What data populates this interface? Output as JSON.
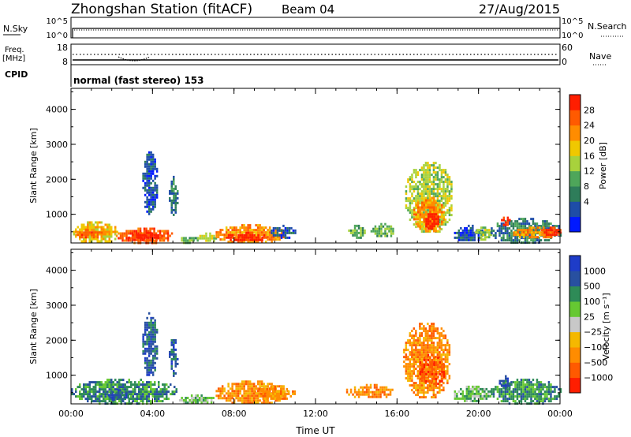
{
  "header": {
    "station": "Zhongshan Station (fitACF)",
    "beam": "Beam 04",
    "date": "27/Aug/2015"
  },
  "top_panels": {
    "nsky_label": "N.Sky",
    "nsearch_label": "N.Search",
    "freq_label_1": "Freq.",
    "freq_label_2": "[MHz]",
    "nave_label": "Nave",
    "cpid_label": "CPID",
    "cpid_text": "normal (fast stereo) 153",
    "noise_ticks_left": [
      "10^5",
      "10^0"
    ],
    "noise_ticks_right": [
      "10^5",
      "10^0"
    ],
    "freq_ticks_left": [
      "18",
      "8"
    ],
    "nave_ticks_right": [
      "60",
      "0"
    ]
  },
  "colors": {
    "power": [
      "#0019ff",
      "#1e4da8",
      "#2e7d5a",
      "#4ea65a",
      "#a8d23c",
      "#f0c800",
      "#ff8c00",
      "#ff5a00",
      "#ff1e00"
    ],
    "velocity": [
      "#ff1e00",
      "#ff5a00",
      "#ff8c00",
      "#f5b800",
      "#c8c8c8",
      "#66c832",
      "#2e8b57",
      "#2850a0",
      "#1e3cc8"
    ]
  },
  "chart_data": [
    {
      "type": "heatmap",
      "panel": "power",
      "xlabel": "",
      "ylabel": "Slant Range [km]",
      "colorbar_label": "Power [dB]",
      "colorbar_ticks": [
        "28",
        "24",
        "20",
        "16",
        "12",
        "8",
        "4"
      ],
      "ylim": [
        180,
        4600
      ],
      "yticks": [
        "4000",
        "3000",
        "2000",
        "1000"
      ],
      "xlim": [
        0,
        24
      ],
      "xticks": [
        "00:00",
        "04:00",
        "08:00",
        "12:00",
        "16:00",
        "20:00",
        "00:00"
      ],
      "blobs": [
        {
          "t0": 0.0,
          "t1": 2.3,
          "r0": 200,
          "r1": 800,
          "level": 5
        },
        {
          "t0": 0.2,
          "t1": 1.6,
          "r0": 350,
          "r1": 580,
          "level": 7
        },
        {
          "t0": 2.2,
          "t1": 5.0,
          "r0": 200,
          "r1": 620,
          "level": 7
        },
        {
          "t0": 2.8,
          "t1": 4.4,
          "r0": 250,
          "r1": 500,
          "level": 8
        },
        {
          "t0": 3.5,
          "t1": 4.2,
          "r0": 1000,
          "r1": 2800,
          "level": 1
        },
        {
          "t0": 4.8,
          "t1": 5.2,
          "r0": 1000,
          "r1": 2100,
          "level": 2
        },
        {
          "t0": 5.3,
          "t1": 6.2,
          "r0": 200,
          "r1": 420,
          "level": 3
        },
        {
          "t0": 6.2,
          "t1": 7.1,
          "r0": 250,
          "r1": 480,
          "level": 4
        },
        {
          "t0": 7.1,
          "t1": 10.4,
          "r0": 200,
          "r1": 720,
          "level": 6
        },
        {
          "t0": 7.6,
          "t1": 9.6,
          "r0": 250,
          "r1": 500,
          "level": 8
        },
        {
          "t0": 9.8,
          "t1": 11.0,
          "r0": 350,
          "r1": 700,
          "level": 1
        },
        {
          "t0": 13.6,
          "t1": 14.4,
          "r0": 350,
          "r1": 700,
          "level": 3
        },
        {
          "t0": 14.7,
          "t1": 15.8,
          "r0": 350,
          "r1": 750,
          "level": 3
        },
        {
          "t0": 16.4,
          "t1": 18.7,
          "r0": 500,
          "r1": 2500,
          "level": 4
        },
        {
          "t0": 16.8,
          "t1": 18.3,
          "r0": 500,
          "r1": 1500,
          "level": 6
        },
        {
          "t0": 17.3,
          "t1": 18.0,
          "r0": 600,
          "r1": 1100,
          "level": 8
        },
        {
          "t0": 18.7,
          "t1": 20.2,
          "r0": 250,
          "r1": 700,
          "level": 1
        },
        {
          "t0": 19.8,
          "t1": 20.6,
          "r0": 300,
          "r1": 650,
          "level": 4
        },
        {
          "t0": 20.6,
          "t1": 24.0,
          "r0": 200,
          "r1": 900,
          "level": 2
        },
        {
          "t0": 21.6,
          "t1": 24.0,
          "r0": 350,
          "r1": 650,
          "level": 6
        },
        {
          "t0": 21.1,
          "t1": 21.5,
          "r0": 700,
          "r1": 1000,
          "level": 8
        },
        {
          "t0": 23.2,
          "t1": 24.0,
          "r0": 400,
          "r1": 650,
          "level": 8
        }
      ]
    },
    {
      "type": "heatmap",
      "panel": "velocity",
      "xlabel": "Time UT",
      "ylabel": "Slant Range [km]",
      "colorbar_label": "Velocity [m s⁻¹]",
      "colorbar_ticks": [
        "1000",
        "500",
        "100",
        "25",
        "−25",
        "−100",
        "−500",
        "−1000"
      ],
      "ylim": [
        180,
        4600
      ],
      "yticks": [
        "4000",
        "3000",
        "2000",
        "1000"
      ],
      "xlim": [
        0,
        24
      ],
      "xticks": [
        "00:00",
        "04:00",
        "08:00",
        "12:00",
        "16:00",
        "20:00",
        "00:00"
      ],
      "blobs": [
        {
          "t0": 0.0,
          "t1": 5.2,
          "r0": 200,
          "r1": 900,
          "level": 6
        },
        {
          "t0": 1.8,
          "t1": 2.8,
          "r0": 300,
          "r1": 600,
          "level": 7
        },
        {
          "t0": 3.5,
          "t1": 4.2,
          "r0": 1000,
          "r1": 2800,
          "level": 7
        },
        {
          "t0": 4.8,
          "t1": 5.2,
          "r0": 1000,
          "r1": 2100,
          "level": 7
        },
        {
          "t0": 5.3,
          "t1": 7.0,
          "r0": 200,
          "r1": 450,
          "level": 5
        },
        {
          "t0": 7.1,
          "t1": 10.6,
          "r0": 200,
          "r1": 850,
          "level": 2
        },
        {
          "t0": 9.0,
          "t1": 11.0,
          "r0": 300,
          "r1": 700,
          "level": 2
        },
        {
          "t0": 13.5,
          "t1": 15.8,
          "r0": 350,
          "r1": 750,
          "level": 2
        },
        {
          "t0": 16.3,
          "t1": 18.6,
          "r0": 400,
          "r1": 2500,
          "level": 2
        },
        {
          "t0": 17.0,
          "t1": 18.3,
          "r0": 700,
          "r1": 1600,
          "level": 1
        },
        {
          "t0": 18.7,
          "t1": 20.6,
          "r0": 250,
          "r1": 700,
          "level": 5
        },
        {
          "t0": 20.6,
          "t1": 24.0,
          "r0": 200,
          "r1": 900,
          "level": 6
        },
        {
          "t0": 21.0,
          "t1": 21.6,
          "r0": 600,
          "r1": 1000,
          "level": 7
        }
      ]
    }
  ]
}
